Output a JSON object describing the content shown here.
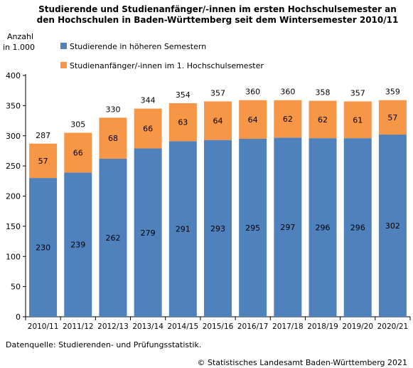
{
  "chart_data": {
    "type": "bar",
    "stacked": true,
    "title_lines": [
      "Studierende und Studienanfänger/-innen im ersten Hochschulsemester an",
      "den Hochschulen in Baden-Württemberg seit dem Wintersemester 2010/11"
    ],
    "ylabel_lines": [
      "Anzahl",
      "in 1.000"
    ],
    "categories": [
      "2010/11",
      "2011/12",
      "2012/13",
      "2013/14",
      "2014/15",
      "2015/16",
      "2016/17",
      "2017/18",
      "2018/19",
      "2019/20",
      "2020/21"
    ],
    "series": [
      {
        "name": "Studierende in höheren Semestern",
        "color": "#4f81bd",
        "values": [
          230,
          239,
          262,
          279,
          291,
          293,
          295,
          297,
          296,
          296,
          302
        ]
      },
      {
        "name": "Studienanfänger/-innen im 1. Hochschulsemester",
        "color": "#f79646",
        "values": [
          57,
          66,
          68,
          66,
          63,
          64,
          64,
          62,
          62,
          61,
          57
        ]
      }
    ],
    "totals": [
      287,
      305,
      330,
      344,
      354,
      357,
      360,
      360,
      358,
      357,
      359
    ],
    "ylim": [
      0,
      400
    ],
    "yticks": [
      0,
      50,
      100,
      150,
      200,
      250,
      300,
      350,
      400
    ],
    "grid": false,
    "legend_position": "top-left"
  },
  "footer": {
    "source": "Datenquelle: Studierenden- und Prüfungsstatistik.",
    "copyright": "© Statistisches Landesamt Baden-Württemberg 2021"
  }
}
